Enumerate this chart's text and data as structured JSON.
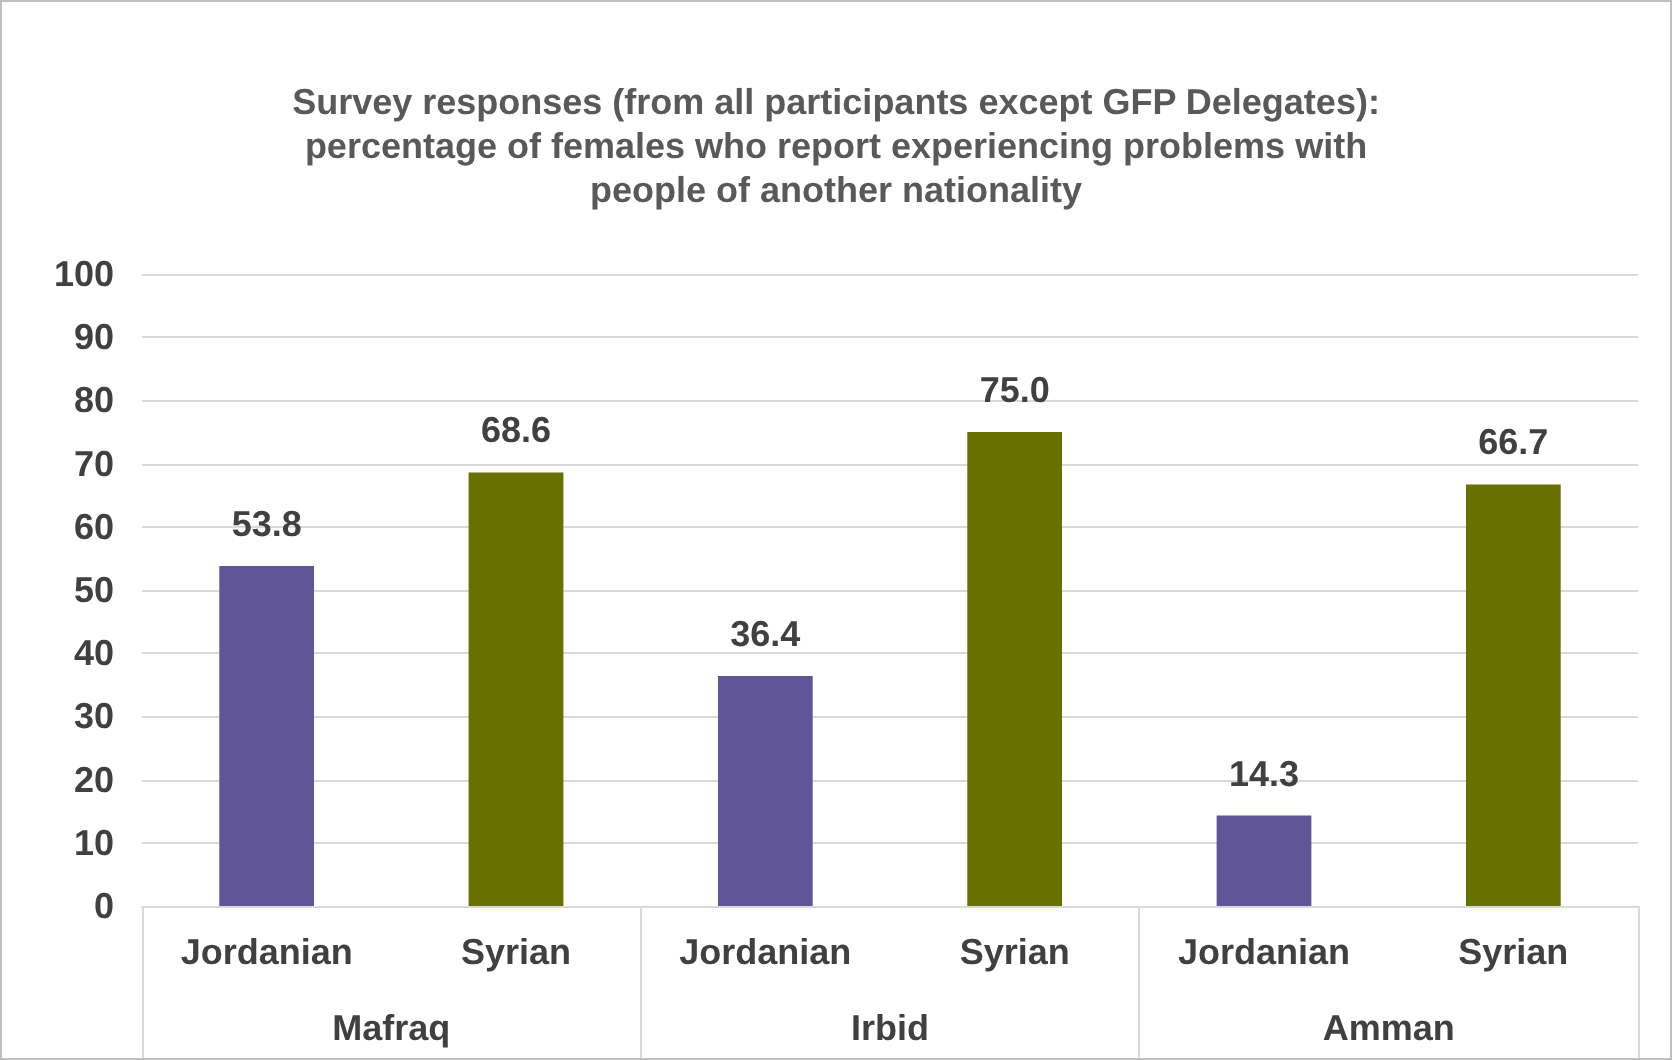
{
  "chart_data": {
    "type": "bar",
    "title": "Survey responses (from all participants except GFP Delegates):\npercentage of females who report experiencing problems with\npeople of another nationality",
    "categories": [
      "Jordanian",
      "Syrian",
      "Jordanian",
      "Syrian",
      "Jordanian",
      "Syrian"
    ],
    "values": [
      53.8,
      68.6,
      36.4,
      75.0,
      14.3,
      66.7
    ],
    "colors": [
      "#5f5597",
      "#687000",
      "#5f5597",
      "#687000",
      "#5f5597",
      "#687000"
    ],
    "annotations": [
      "Mafraq",
      "Irbid",
      "Amman"
    ],
    "ylim": [
      0,
      100
    ],
    "yticks": [
      0,
      10,
      20,
      30,
      40,
      50,
      60,
      70,
      80,
      90,
      100
    ],
    "value_labels": [
      "53.8",
      "68.6",
      "36.4",
      "75.0",
      "14.3",
      "66.7"
    ],
    "grid": "y"
  }
}
